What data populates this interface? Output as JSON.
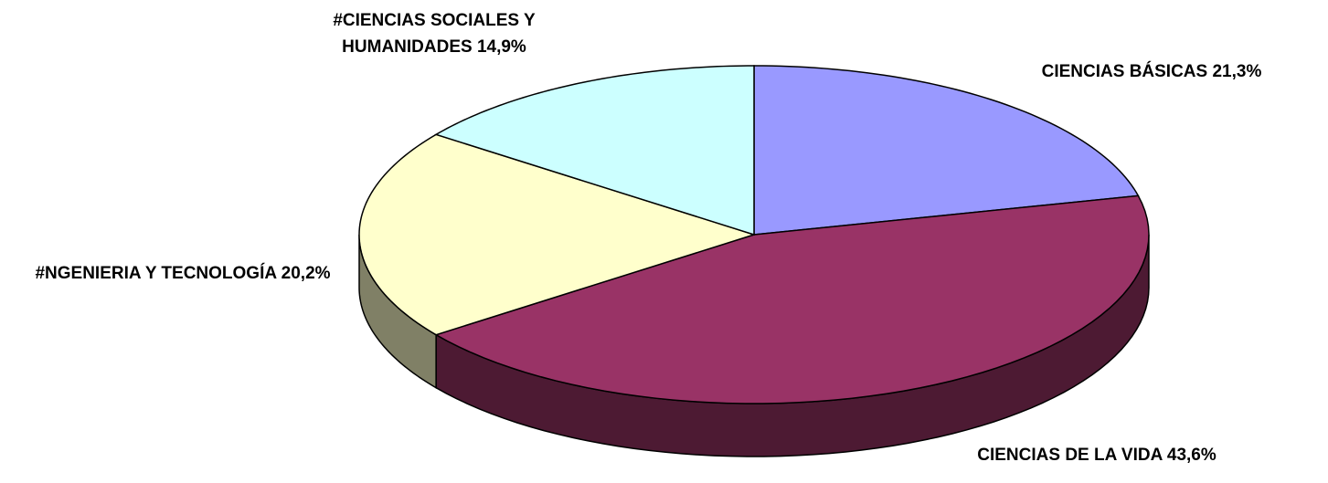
{
  "chart_data": {
    "type": "pie",
    "categories": [
      "CIENCIAS BÁSICAS",
      "CIENCIAS DE LA VIDA",
      "#NGENIERIA Y TECNOLOGÍA",
      "#CIENCIAS SOCIALES Y HUMANIDADES"
    ],
    "values": [
      21.3,
      43.6,
      20.2,
      14.9
    ],
    "value_labels": [
      "21,3%",
      "43,6%",
      "20,2%",
      "14,9%"
    ],
    "colors": [
      "#9999ff",
      "#993366",
      "#ffffcc",
      "#ccffff"
    ]
  }
}
